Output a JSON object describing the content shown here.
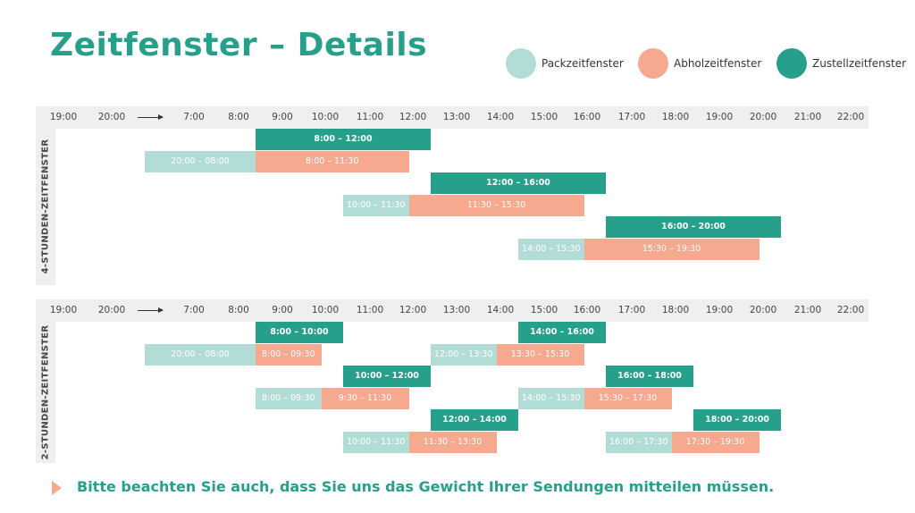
{
  "title": "Zeitfenster – Details",
  "legend": [
    {
      "key": "pack",
      "label": "Packzeitfenster",
      "color": "#b2ddd6"
    },
    {
      "key": "abhol",
      "label": "Abholzeitfenster",
      "color": "#f6a98e"
    },
    {
      "key": "zustell",
      "label": "Zustellzeitfenster",
      "color": "#26a08a"
    }
  ],
  "hours": [
    "19:00",
    "20:00",
    "7:00",
    "8:00",
    "9:00",
    "10:00",
    "11:00",
    "12:00",
    "13:00",
    "14:00",
    "15:00",
    "16:00",
    "17:00",
    "18:00",
    "19:00",
    "20:00",
    "21:00",
    "22:00"
  ],
  "panels": [
    {
      "label": "4-STUNDEN-ZEITFENSTER",
      "bars": [
        {
          "type": "zustell",
          "start": "8:00",
          "end": "12:00",
          "label": "8:00 – 12:00",
          "row": 0
        },
        {
          "type": "pack",
          "start": "20:00",
          "end": "8:00",
          "label": "20:00 – 08:00",
          "row": 1
        },
        {
          "type": "abhol",
          "start": "8:00",
          "end": "11:30",
          "label": "8:00 – 11:30",
          "row": 1
        },
        {
          "type": "zustell",
          "start": "12:00",
          "end": "16:00",
          "label": "12:00 – 16:00",
          "row": 2
        },
        {
          "type": "pack",
          "start": "10:00",
          "end": "11:30",
          "label": "10:00 – 11:30",
          "row": 3
        },
        {
          "type": "abhol",
          "start": "11:30",
          "end": "15:30",
          "label": "11:30 – 15:30",
          "row": 3
        },
        {
          "type": "zustell",
          "start": "16:00",
          "end": "20:00",
          "label": "16:00 – 20:00",
          "row": 4
        },
        {
          "type": "pack",
          "start": "14:00",
          "end": "15:30",
          "label": "14:00 – 15:30",
          "row": 5
        },
        {
          "type": "abhol",
          "start": "15:30",
          "end": "19:30",
          "label": "15:30 – 19:30",
          "row": 5
        }
      ]
    },
    {
      "label": "2-STUNDEN-ZEITFENSTER",
      "bars": [
        {
          "type": "zustell",
          "start": "8:00",
          "end": "10:00",
          "label": "8:00 – 10:00",
          "row": 0
        },
        {
          "type": "zustell",
          "start": "14:00",
          "end": "16:00",
          "label": "14:00 – 16:00",
          "row": 0
        },
        {
          "type": "pack",
          "start": "20:00",
          "end": "8:00",
          "label": "20:00 – 08:00",
          "row": 1
        },
        {
          "type": "abhol",
          "start": "8:00",
          "end": "9:30",
          "label": "8:00 – 09:30",
          "row": 1
        },
        {
          "type": "pack",
          "start": "12:00",
          "end": "13:30",
          "label": "12:00 – 13:30",
          "row": 1
        },
        {
          "type": "abhol",
          "start": "13:30",
          "end": "15:30",
          "label": "13:30 – 15:30",
          "row": 1
        },
        {
          "type": "zustell",
          "start": "10:00",
          "end": "12:00",
          "label": "10:00 – 12:00",
          "row": 2
        },
        {
          "type": "zustell",
          "start": "16:00",
          "end": "18:00",
          "label": "16:00 – 18:00",
          "row": 2
        },
        {
          "type": "pack",
          "start": "8:00",
          "end": "9:30",
          "label": "8:00 – 09:30",
          "row": 3
        },
        {
          "type": "abhol",
          "start": "9:30",
          "end": "11:30",
          "label": "9:30 – 11:30",
          "row": 3
        },
        {
          "type": "pack",
          "start": "14:00",
          "end": "15:30",
          "label": "14:00 – 15:30",
          "row": 3
        },
        {
          "type": "abhol",
          "start": "15:30",
          "end": "17:30",
          "label": "15:30 – 17:30",
          "row": 3
        },
        {
          "type": "zustell",
          "start": "12:00",
          "end": "14:00",
          "label": "12:00 – 14:00",
          "row": 4
        },
        {
          "type": "zustell",
          "start": "18:00",
          "end": "20:00",
          "label": "18:00 – 20:00",
          "row": 4
        },
        {
          "type": "pack",
          "start": "10:00",
          "end": "11:30",
          "label": "10:00 – 11:30",
          "row": 5
        },
        {
          "type": "abhol",
          "start": "11:30",
          "end": "13:30",
          "label": "11:30 – 13:30",
          "row": 5
        },
        {
          "type": "pack",
          "start": "16:00",
          "end": "17:30",
          "label": "16:00 – 17:30",
          "row": 5
        },
        {
          "type": "abhol",
          "start": "17:30",
          "end": "19:30",
          "label": "17:30 – 19:30",
          "row": 5
        }
      ]
    }
  ],
  "note": "Bitte beachten Sie auch, dass Sie uns das Gewicht Ihrer Sendungen mitteilen müssen."
}
